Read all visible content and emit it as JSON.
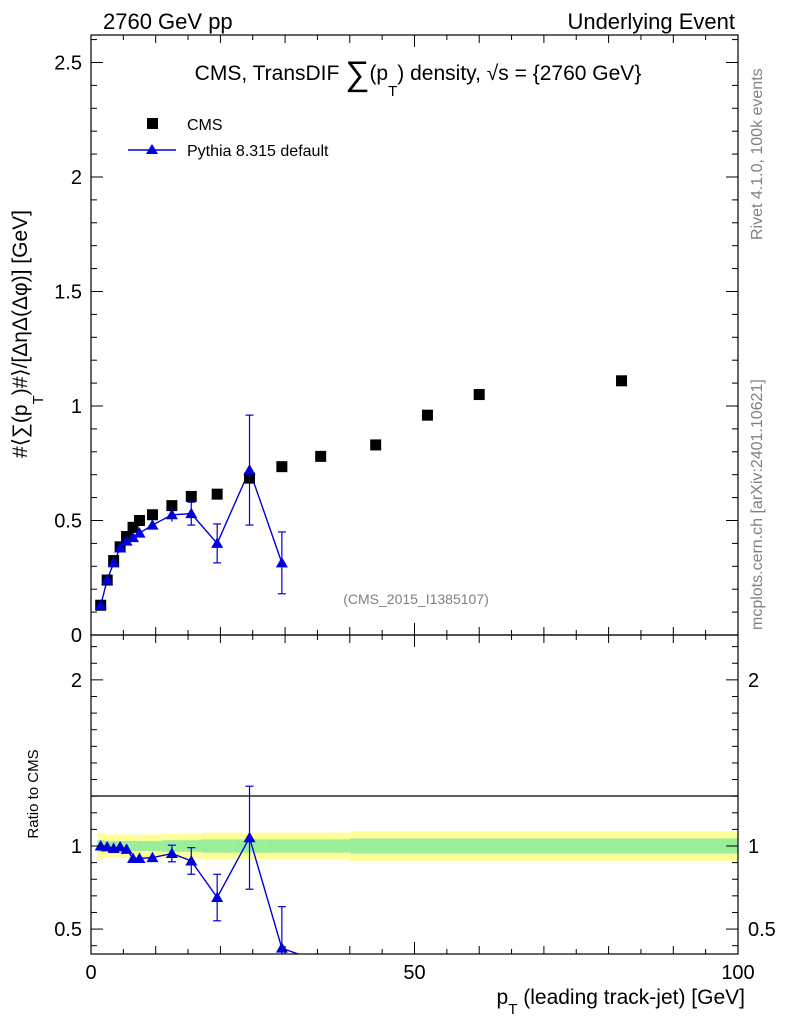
{
  "header": {
    "left": "2760 GeV pp",
    "right": "Underlying Event"
  },
  "side_labels": {
    "rivet": "Rivet 4.1.0,  100k events",
    "mcplots": "mcplots.cern.ch [arXiv:2401.10621]"
  },
  "chart_data": [
    {
      "type": "scatter",
      "panel": "main",
      "title": "CMS, TransDIF ∑(p_T) density, √s = {2760 GeV}",
      "title_parts": {
        "pre": "CMS, TransDIF ",
        "sum": "∑",
        "mid": "(p",
        "sub": "T",
        "post": ") density, √s = {2760 GeV}"
      },
      "ylabel": "#⟨∑(p_T)#⟩/[ΔηΔ(Δφ)] [GeV]",
      "ylabel_parts": {
        "pre": "#⟨∑(p",
        "sub": "T",
        "post": ")#⟩/[ΔηΔ(Δφ)] [GeV]"
      },
      "watermark": "(CMS_2015_I1385107)",
      "xlim": [
        0,
        100
      ],
      "ylim": [
        0,
        2.62
      ],
      "yticks": [
        0,
        0.5,
        1,
        1.5,
        2,
        2.5
      ],
      "ytick_labels": [
        "0",
        "0.5",
        "1",
        "1.5",
        "2",
        "2.5"
      ],
      "legend": [
        "CMS",
        "Pythia 8.315 default"
      ],
      "legend_position": "top-left",
      "series": [
        {
          "name": "CMS",
          "marker": "square",
          "color": "#000000",
          "x": [
            1.5,
            2.5,
            3.5,
            4.5,
            5.5,
            6.5,
            7.5,
            9.5,
            12.5,
            15.5,
            19.5,
            24.5,
            29.5,
            35.5,
            44,
            52,
            60,
            82
          ],
          "y": [
            0.13,
            0.24,
            0.325,
            0.385,
            0.43,
            0.47,
            0.5,
            0.525,
            0.565,
            0.605,
            0.615,
            0.685,
            0.735,
            0.78,
            0.83,
            0.96,
            1.05,
            1.11
          ]
        },
        {
          "name": "Pythia 8.315 default",
          "marker": "triangle",
          "color": "#0000dd",
          "x": [
            1.5,
            2.5,
            3.5,
            4.5,
            5.5,
            6.5,
            7.5,
            9.5,
            12.5,
            15.5,
            19.5,
            24.5,
            29.5
          ],
          "y": [
            0.13,
            0.24,
            0.315,
            0.38,
            0.41,
            0.425,
            0.445,
            0.48,
            0.525,
            0.53,
            0.4,
            0.72,
            0.315
          ],
          "yerr": [
            0.01,
            0.01,
            0.01,
            0.015,
            0.015,
            0.015,
            0.015,
            0.02,
            0.03,
            0.05,
            0.085,
            0.24,
            0.135
          ]
        }
      ]
    },
    {
      "type": "line",
      "panel": "ratio",
      "ylabel": "Ratio to CMS",
      "xlabel": "p_T (leading track-jet) [GeV]",
      "xlabel_parts": {
        "pre": "p",
        "sub": "T",
        "post": " (leading track-jet) [GeV]"
      },
      "xlim": [
        0,
        100
      ],
      "ylim": [
        0.35,
        2.27
      ],
      "xticks": [
        0,
        50,
        100
      ],
      "xtick_labels": [
        "0",
        "50",
        "100"
      ],
      "yticks": [
        0.5,
        1,
        2
      ],
      "ytick_labels": [
        "0.5",
        "1",
        "2"
      ],
      "bands": [
        {
          "name": "total uncertainty",
          "color": "#ffff99",
          "x_edges": [
            1,
            2,
            3,
            4,
            5,
            6,
            7,
            8,
            11,
            14,
            17,
            22,
            27,
            32,
            40,
            100
          ],
          "half_width": [
            0.08,
            0.07,
            0.07,
            0.07,
            0.07,
            0.07,
            0.07,
            0.07,
            0.075,
            0.075,
            0.08,
            0.08,
            0.08,
            0.08,
            0.09
          ]
        },
        {
          "name": "stat uncertainty",
          "color": "#99ee99",
          "x_edges": [
            1,
            2,
            3,
            4,
            5,
            6,
            7,
            8,
            11,
            14,
            17,
            22,
            27,
            32,
            40,
            100
          ],
          "half_width": [
            0.035,
            0.03,
            0.03,
            0.03,
            0.03,
            0.03,
            0.03,
            0.03,
            0.035,
            0.035,
            0.04,
            0.04,
            0.04,
            0.04,
            0.045
          ]
        }
      ],
      "series": [
        {
          "name": "Pythia 8.315 default",
          "color": "#0000dd",
          "x": [
            1.5,
            2.5,
            3.5,
            4.5,
            5.5,
            6.5,
            7.5,
            9.5,
            12.5,
            15.5,
            19.5,
            24.5,
            29.5,
            32.0
          ],
          "y": [
            1.0,
            0.995,
            0.985,
            0.995,
            0.98,
            0.925,
            0.925,
            0.93,
            0.955,
            0.91,
            0.69,
            1.05,
            0.385,
            0.35
          ],
          "yerr": [
            0.01,
            0.01,
            0.01,
            0.015,
            0.015,
            0.02,
            0.02,
            0.025,
            0.05,
            0.08,
            0.14,
            0.31,
            0.25,
            0
          ]
        }
      ]
    }
  ]
}
